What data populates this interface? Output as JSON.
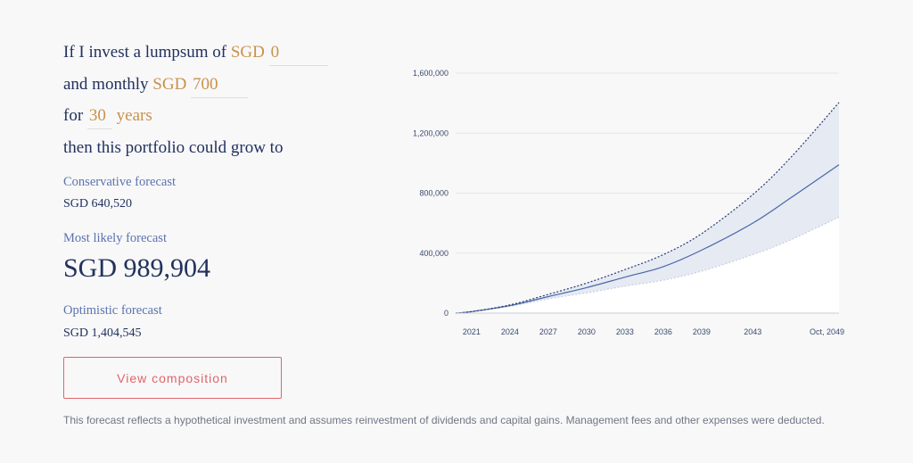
{
  "form": {
    "line1_prefix": "If I invest a lumpsum of",
    "lumpsum_currency": "SGD",
    "lumpsum_value": "0",
    "line2_prefix": "and monthly",
    "monthly_currency": "SGD",
    "monthly_value": "700",
    "line3_prefix": "for",
    "years_value": "30",
    "years_suffix": "years",
    "line4": "then this portfolio could grow to"
  },
  "forecasts": {
    "conservative_label": "Conservative forecast",
    "conservative_value": "SGD 640,520",
    "likely_label": "Most likely forecast",
    "likely_value": "SGD 989,904",
    "optimistic_label": "Optimistic forecast",
    "optimistic_value": "SGD 1,404,545"
  },
  "button": {
    "label": "View composition"
  },
  "disclaimer": "This forecast reflects a hypothetical investment and assumes reinvestment of dividends and capital gains. Management fees and other expenses were deducted.",
  "colors": {
    "likely_line": "#4a67a8",
    "optimistic_line": "#2a3b6e",
    "band_fill": "#e6eaf3",
    "conservative_line": "#c7cfe0",
    "grid": "#e4e6ea",
    "axis_text": "#3b4a6b"
  },
  "chart_data": {
    "type": "line",
    "x_start": 2019.75,
    "x_end": 2049.75,
    "ylim": [
      0,
      1600000
    ],
    "yticks": [
      0,
      400000,
      800000,
      1200000,
      1600000
    ],
    "ytick_labels": [
      "0",
      "400,000",
      "800,000",
      "1,200,000",
      "1,600,000"
    ],
    "xticks": [
      2021,
      2024,
      2027,
      2030,
      2033,
      2036,
      2039,
      2043,
      2049.75
    ],
    "xtick_labels": [
      "2021",
      "2024",
      "2027",
      "2030",
      "2033",
      "2036",
      "2039",
      "2043",
      "Oct, 2049"
    ],
    "grid": true,
    "series": [
      {
        "role": "optimistic",
        "x": [
          2019.75,
          2021,
          2024,
          2027,
          2030,
          2033,
          2036,
          2039,
          2043,
          2046,
          2049.75
        ],
        "y": [
          0,
          10000,
          55000,
          125000,
          200000,
          290000,
          390000,
          530000,
          790000,
          1040000,
          1404545
        ]
      },
      {
        "role": "likely",
        "x": [
          2019.75,
          2021,
          2024,
          2027,
          2030,
          2033,
          2036,
          2039,
          2043,
          2046,
          2049.75
        ],
        "y": [
          0,
          10000,
          50000,
          110000,
          170000,
          240000,
          310000,
          420000,
          600000,
          770000,
          989904
        ]
      },
      {
        "role": "conservative",
        "x": [
          2019.75,
          2021,
          2024,
          2027,
          2030,
          2033,
          2036,
          2039,
          2043,
          2046,
          2049.75
        ],
        "y": [
          0,
          9000,
          45000,
          95000,
          135000,
          180000,
          220000,
          280000,
          390000,
          490000,
          640520
        ]
      }
    ]
  }
}
